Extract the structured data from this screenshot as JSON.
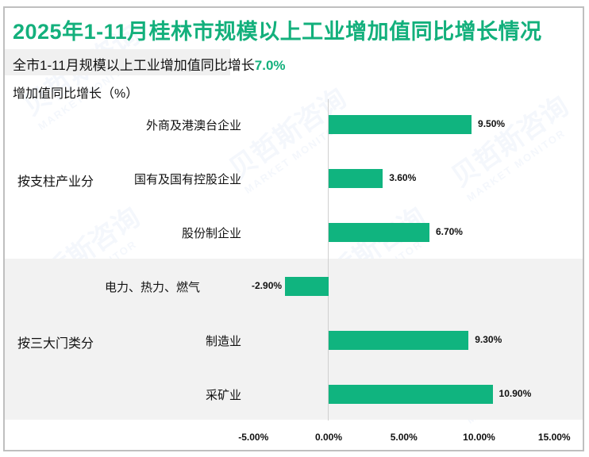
{
  "header": {
    "title": "2025年1-11月桂林市规模以上工业增加值同比增长情况",
    "subtitle_prefix": "全市1-11月规模以上工业增加值同比增长",
    "subtitle_value": "7.0%",
    "y_axis_label": "增加值同比增长（%）"
  },
  "colors": {
    "accent": "#13b07c",
    "bar": "#10b47f",
    "band": "#f2f2f2",
    "frame": "#bfbfbf"
  },
  "groups": [
    {
      "label": "按支柱产业分"
    },
    {
      "label": "按三大门类分"
    }
  ],
  "watermark": {
    "cn": "贝哲斯咨询",
    "en": "MARKET MONITOR"
  },
  "chart_data": {
    "type": "bar",
    "orientation": "horizontal",
    "title": "2025年1-11月桂林市规模以上工业增加值同比增长情况",
    "subtitle": "全市1-11月规模以上工业增加值同比增长7.0%",
    "xlabel": "",
    "ylabel": "增加值同比增长（%）",
    "groups": [
      "按支柱产业分",
      "按支柱产业分",
      "按支柱产业分",
      "按三大门类分",
      "按三大门类分",
      "按三大门类分"
    ],
    "categories": [
      "外商及港澳台企业",
      "国有及国有控股企业",
      "股份制企业",
      "电力、热力、燃气",
      "制造业",
      "采矿业"
    ],
    "values": [
      9.5,
      3.6,
      6.7,
      -2.9,
      9.3,
      10.9
    ],
    "value_labels": [
      "9.50%",
      "3.60%",
      "6.70%",
      "-2.90%",
      "9.30%",
      "10.90%"
    ],
    "xlim": [
      -5,
      15
    ],
    "x_ticks": [
      "-5.00%",
      "0.00%",
      "5.00%",
      "10.00%",
      "15.00%"
    ],
    "x_tick_values": [
      -5,
      0,
      5,
      10,
      15
    ],
    "grid": false,
    "legend": "none"
  }
}
